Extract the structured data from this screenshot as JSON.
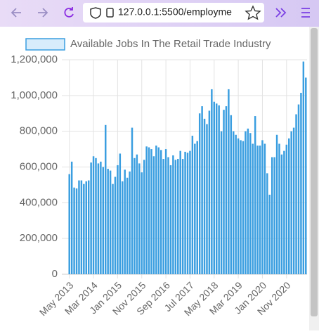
{
  "browser": {
    "url": "127.0.0.1:5500/employme"
  },
  "chart_data": {
    "type": "bar",
    "categories": [
      "May 2013",
      null,
      null,
      null,
      null,
      null,
      null,
      null,
      null,
      null,
      "Mar 2014",
      null,
      null,
      null,
      null,
      null,
      null,
      null,
      null,
      null,
      "Jan 2015",
      null,
      null,
      null,
      null,
      null,
      null,
      null,
      null,
      null,
      "Nov 2015",
      null,
      null,
      null,
      null,
      null,
      null,
      null,
      null,
      null,
      "Sep 2016",
      null,
      null,
      null,
      null,
      null,
      null,
      null,
      null,
      null,
      "Jul 2017",
      null,
      null,
      null,
      null,
      null,
      null,
      null,
      null,
      null,
      "May 2018",
      null,
      null,
      null,
      null,
      null,
      null,
      null,
      null,
      null,
      "Mar 2019",
      null,
      null,
      null,
      null,
      null,
      null,
      null,
      null,
      null,
      "Jan 2020",
      null,
      null,
      null,
      null,
      null,
      null,
      null,
      null,
      null,
      "Nov 2020",
      null,
      null,
      null,
      null,
      null,
      null,
      null,
      null
    ],
    "series": [
      {
        "name": "Available Jobs In The Retail Trade Industry",
        "color": "#3a9ee0",
        "values": [
          560000,
          630000,
          485000,
          480000,
          525000,
          525000,
          505000,
          520000,
          525000,
          625000,
          660000,
          650000,
          620000,
          630000,
          600000,
          835000,
          590000,
          580000,
          505000,
          545000,
          610000,
          675000,
          520000,
          585000,
          540000,
          575000,
          820000,
          650000,
          670000,
          620000,
          570000,
          640000,
          715000,
          710000,
          700000,
          660000,
          720000,
          710000,
          695000,
          645000,
          700000,
          655000,
          610000,
          665000,
          640000,
          645000,
          690000,
          645000,
          685000,
          680000,
          690000,
          775000,
          730000,
          745000,
          900000,
          940000,
          870000,
          840000,
          915000,
          1035000,
          965000,
          955000,
          945000,
          800000,
          920000,
          940000,
          1035000,
          890000,
          800000,
          780000,
          760000,
          750000,
          745000,
          800000,
          815000,
          790000,
          730000,
          885000,
          720000,
          720000,
          750000,
          730000,
          565000,
          445000,
          655000,
          655000,
          780000,
          730000,
          670000,
          690000,
          725000,
          760000,
          800000,
          820000,
          895000,
          950000,
          1015000,
          1190000,
          1100000
        ]
      }
    ],
    "ylim": [
      0,
      1200000
    ],
    "yticks": [
      0,
      {
        "value": 200000,
        "label": "200,000"
      },
      {
        "value": 400000,
        "label": "400,000"
      },
      {
        "value": 600000,
        "label": "600,000"
      },
      {
        "value": 800000,
        "label": "800,000"
      },
      {
        "value": 1000000,
        "label": "1,000,000"
      },
      {
        "value": 1200000,
        "label": "1,200,000"
      }
    ],
    "grid": true,
    "legend": "top"
  }
}
